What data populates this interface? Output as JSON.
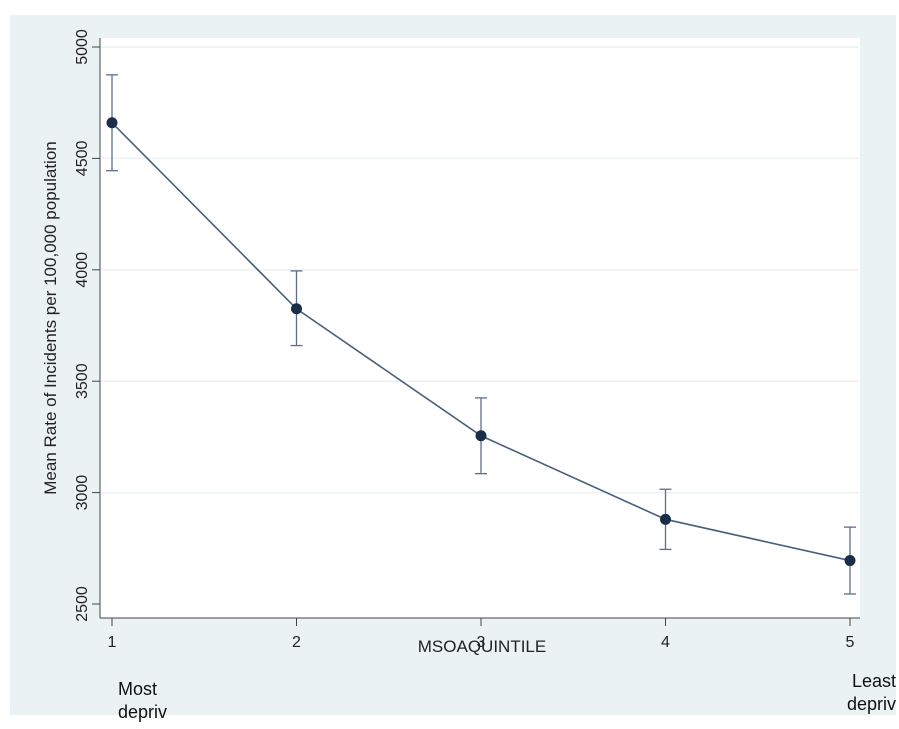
{
  "colors": {
    "outer_background": "#eaf2f3",
    "plot_background": "#ffffff",
    "gridline": "#eaf2f3",
    "series": "#1a2e4a",
    "line": "#4a5f7c",
    "error_bar": "#5a6f8c",
    "axis": "#444444"
  },
  "chart_data": {
    "type": "line",
    "title": "",
    "xlabel": "MSOAQUINTILE",
    "ylabel": "Mean Rate of Incidents per 100,000 population",
    "x": [
      1,
      2,
      3,
      4,
      5
    ],
    "xticks": [
      "1",
      "2",
      "3",
      "4",
      "5"
    ],
    "yticks": [
      "2500",
      "3000",
      "3500",
      "4000",
      "4500",
      "5000"
    ],
    "xlim": [
      1,
      5
    ],
    "ylim": [
      2500,
      5000
    ],
    "grid": "horizontal",
    "legend": "none",
    "series": [
      {
        "values": [
          4660,
          3825,
          3255,
          2880,
          2695
        ],
        "ci_lower": [
          4445,
          3660,
          3085,
          2745,
          2545
        ],
        "ci_upper": [
          4875,
          3995,
          3425,
          3015,
          2845
        ]
      }
    ],
    "annotations": {
      "left": [
        "Most",
        "depriv"
      ],
      "right": [
        "Least",
        "depriv"
      ]
    }
  }
}
